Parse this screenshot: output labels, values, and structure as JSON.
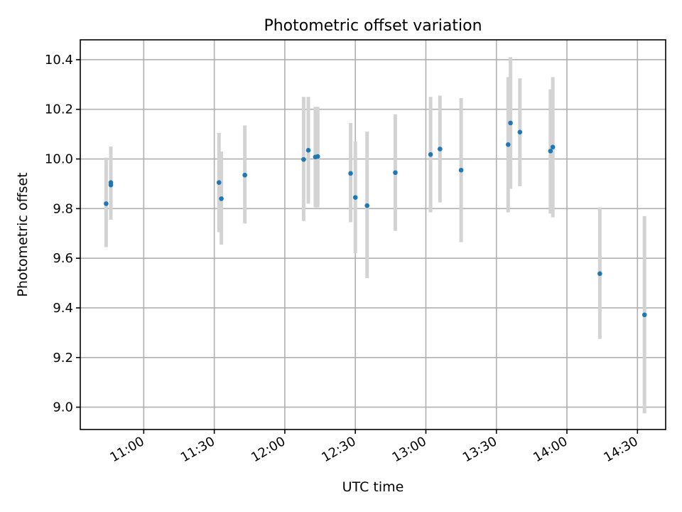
{
  "chart_data": {
    "type": "scatter",
    "title": "Photometric offset variation",
    "xlabel": "UTC time",
    "ylabel": "Photometric offset",
    "x_ticks": [
      "11:00",
      "11:30",
      "12:00",
      "12:30",
      "13:00",
      "13:30",
      "14:00",
      "14:30"
    ],
    "y_ticks": [
      "9.0",
      "9.2",
      "9.4",
      "9.6",
      "9.8",
      "10.0",
      "10.2",
      "10.4"
    ],
    "xlim": [
      "10:33",
      "14:42"
    ],
    "ylim": [
      8.91,
      10.48
    ],
    "grid": true,
    "colors": {
      "point": "#1f77b4",
      "error_bar": "#d3d3d3",
      "grid": "#b0b0b0"
    },
    "series": [
      {
        "points": [
          {
            "x": "10:44",
            "y": 9.82,
            "err_low": 9.645,
            "err_high": 10.005
          },
          {
            "x": "10:46",
            "y": 9.905,
            "err_low": 9.755,
            "err_high": 10.05
          },
          {
            "x": "10:46",
            "y": 9.895,
            "err_low": 9.755,
            "err_high": 10.05
          },
          {
            "x": "11:32",
            "y": 9.905,
            "err_low": 9.705,
            "err_high": 10.105
          },
          {
            "x": "11:33",
            "y": 9.84,
            "err_low": 9.655,
            "err_high": 10.03
          },
          {
            "x": "11:43",
            "y": 9.935,
            "err_low": 9.74,
            "err_high": 10.135
          },
          {
            "x": "12:08",
            "y": 9.998,
            "err_low": 9.75,
            "err_high": 10.25
          },
          {
            "x": "12:10",
            "y": 10.035,
            "err_low": 9.82,
            "err_high": 10.25
          },
          {
            "x": "12:13",
            "y": 10.008,
            "err_low": 9.805,
            "err_high": 10.21
          },
          {
            "x": "12:14",
            "y": 10.01,
            "err_low": 9.805,
            "err_high": 10.21
          },
          {
            "x": "12:28",
            "y": 9.942,
            "err_low": 9.745,
            "err_high": 10.145
          },
          {
            "x": "12:30",
            "y": 9.845,
            "err_low": 9.62,
            "err_high": 10.07
          },
          {
            "x": "12:35",
            "y": 9.812,
            "err_low": 9.52,
            "err_high": 10.11
          },
          {
            "x": "12:47",
            "y": 9.945,
            "err_low": 9.71,
            "err_high": 10.18
          },
          {
            "x": "13:02",
            "y": 10.018,
            "err_low": 9.785,
            "err_high": 10.25
          },
          {
            "x": "13:06",
            "y": 10.04,
            "err_low": 9.825,
            "err_high": 10.255
          },
          {
            "x": "13:15",
            "y": 9.955,
            "err_low": 9.665,
            "err_high": 10.245
          },
          {
            "x": "13:35",
            "y": 10.058,
            "err_low": 9.785,
            "err_high": 10.33
          },
          {
            "x": "13:36",
            "y": 10.145,
            "err_low": 9.88,
            "err_high": 10.41
          },
          {
            "x": "13:40",
            "y": 10.108,
            "err_low": 9.89,
            "err_high": 10.325
          },
          {
            "x": "13:53",
            "y": 10.032,
            "err_low": 9.78,
            "err_high": 10.28
          },
          {
            "x": "13:54",
            "y": 10.048,
            "err_low": 9.765,
            "err_high": 10.33
          },
          {
            "x": "14:14",
            "y": 9.538,
            "err_low": 9.275,
            "err_high": 9.805
          },
          {
            "x": "14:33",
            "y": 9.372,
            "err_low": 8.975,
            "err_high": 9.77
          }
        ]
      }
    ]
  }
}
